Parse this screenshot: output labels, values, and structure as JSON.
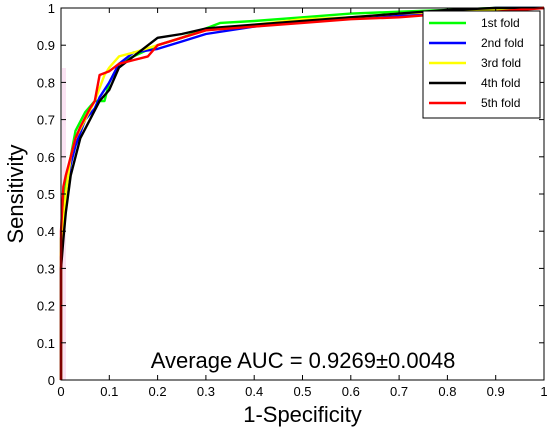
{
  "chart_data": {
    "type": "line",
    "xlabel": "1-Specificity",
    "ylabel": "Sensitivity",
    "xlim": [
      0,
      1
    ],
    "ylim": [
      0,
      1
    ],
    "xticks": [
      "0",
      "0.1",
      "0.2",
      "0.3",
      "0.4",
      "0.5",
      "0.6",
      "0.7",
      "0.8",
      "0.9",
      "1"
    ],
    "yticks": [
      "0",
      "0.1",
      "0.2",
      "0.3",
      "0.4",
      "0.5",
      "0.6",
      "0.7",
      "0.8",
      "0.9",
      "1"
    ],
    "grid": false,
    "legend_position": "top-right",
    "annotation": "Average AUC = 0.9269±0.0048",
    "series": [
      {
        "name": "1st fold",
        "color": "#00ff00",
        "points": [
          [
            0,
            0
          ],
          [
            0,
            0.38
          ],
          [
            0.005,
            0.45
          ],
          [
            0.01,
            0.52
          ],
          [
            0.02,
            0.6
          ],
          [
            0.03,
            0.67
          ],
          [
            0.05,
            0.72
          ],
          [
            0.07,
            0.75
          ],
          [
            0.09,
            0.75
          ],
          [
            0.1,
            0.8
          ],
          [
            0.12,
            0.85
          ],
          [
            0.15,
            0.87
          ],
          [
            0.2,
            0.9
          ],
          [
            0.25,
            0.92
          ],
          [
            0.33,
            0.96
          ],
          [
            0.4,
            0.965
          ],
          [
            0.5,
            0.975
          ],
          [
            0.6,
            0.985
          ],
          [
            0.7,
            0.99
          ],
          [
            0.8,
            0.995
          ],
          [
            0.9,
            1.0
          ],
          [
            1,
            1
          ]
        ]
      },
      {
        "name": "2nd fold",
        "color": "#0000ff",
        "points": [
          [
            0,
            0
          ],
          [
            0,
            0.33
          ],
          [
            0.005,
            0.4
          ],
          [
            0.01,
            0.5
          ],
          [
            0.02,
            0.58
          ],
          [
            0.03,
            0.63
          ],
          [
            0.05,
            0.7
          ],
          [
            0.07,
            0.73
          ],
          [
            0.08,
            0.76
          ],
          [
            0.1,
            0.8
          ],
          [
            0.12,
            0.85
          ],
          [
            0.15,
            0.88
          ],
          [
            0.2,
            0.89
          ],
          [
            0.25,
            0.91
          ],
          [
            0.3,
            0.93
          ],
          [
            0.4,
            0.95
          ],
          [
            0.5,
            0.965
          ],
          [
            0.6,
            0.975
          ],
          [
            0.7,
            0.98
          ],
          [
            0.8,
            0.99
          ],
          [
            0.9,
            1.0
          ],
          [
            1,
            1
          ]
        ]
      },
      {
        "name": "3rd fold",
        "color": "#ffff00",
        "points": [
          [
            0,
            0
          ],
          [
            0,
            0.34
          ],
          [
            0.005,
            0.42
          ],
          [
            0.01,
            0.5
          ],
          [
            0.02,
            0.6
          ],
          [
            0.03,
            0.65
          ],
          [
            0.05,
            0.7
          ],
          [
            0.07,
            0.75
          ],
          [
            0.09,
            0.82
          ],
          [
            0.1,
            0.84
          ],
          [
            0.12,
            0.87
          ],
          [
            0.15,
            0.88
          ],
          [
            0.2,
            0.9
          ],
          [
            0.3,
            0.94
          ],
          [
            0.4,
            0.955
          ],
          [
            0.5,
            0.97
          ],
          [
            0.6,
            0.975
          ],
          [
            0.7,
            0.985
          ],
          [
            0.8,
            0.99
          ],
          [
            0.9,
            0.995
          ],
          [
            1,
            1
          ]
        ]
      },
      {
        "name": "4th fold",
        "color": "#000000",
        "points": [
          [
            0,
            0
          ],
          [
            0,
            0.3
          ],
          [
            0.005,
            0.38
          ],
          [
            0.01,
            0.45
          ],
          [
            0.02,
            0.55
          ],
          [
            0.03,
            0.6
          ],
          [
            0.04,
            0.65
          ],
          [
            0.06,
            0.7
          ],
          [
            0.08,
            0.75
          ],
          [
            0.1,
            0.78
          ],
          [
            0.12,
            0.84
          ],
          [
            0.15,
            0.87
          ],
          [
            0.2,
            0.92
          ],
          [
            0.25,
            0.93
          ],
          [
            0.3,
            0.945
          ],
          [
            0.4,
            0.955
          ],
          [
            0.5,
            0.965
          ],
          [
            0.6,
            0.975
          ],
          [
            0.7,
            0.985
          ],
          [
            0.8,
            0.995
          ],
          [
            0.9,
            1.0
          ],
          [
            1,
            1
          ]
        ]
      },
      {
        "name": "5th fold",
        "color": "#ff0000",
        "points": [
          [
            0,
            0
          ],
          [
            0,
            0.4
          ],
          [
            0.005,
            0.52
          ],
          [
            0.01,
            0.55
          ],
          [
            0.02,
            0.6
          ],
          [
            0.03,
            0.65
          ],
          [
            0.04,
            0.68
          ],
          [
            0.06,
            0.73
          ],
          [
            0.07,
            0.75
          ],
          [
            0.08,
            0.82
          ],
          [
            0.1,
            0.83
          ],
          [
            0.12,
            0.85
          ],
          [
            0.15,
            0.86
          ],
          [
            0.18,
            0.87
          ],
          [
            0.2,
            0.9
          ],
          [
            0.3,
            0.94
          ],
          [
            0.4,
            0.95
          ],
          [
            0.5,
            0.96
          ],
          [
            0.6,
            0.97
          ],
          [
            0.7,
            0.975
          ],
          [
            0.8,
            0.985
          ],
          [
            0.9,
            0.99
          ],
          [
            1,
            1
          ]
        ]
      }
    ]
  }
}
